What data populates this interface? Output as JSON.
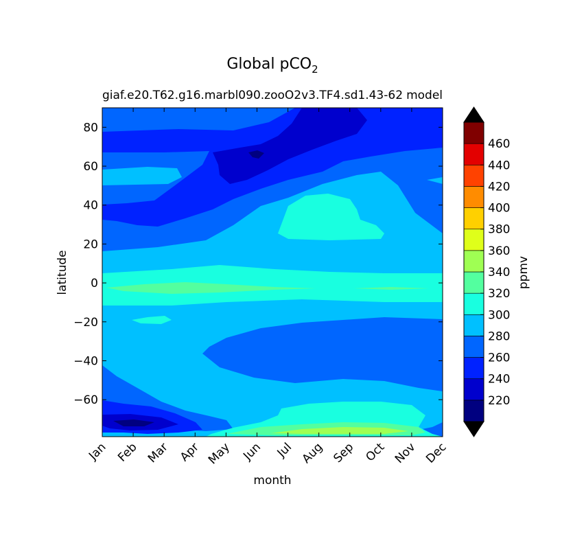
{
  "figure": {
    "title_main": "Global pCO",
    "title_sub": "2",
    "subtitle_left": "giaf.e20.T62.g16.marbl090.zooO2v3.TF4.sd1.43-62",
    "subtitle_right": "model"
  },
  "chart_data": {
    "type": "heatmap",
    "plot_style": "filled-contour",
    "xlabel": "month",
    "ylabel": "latitude",
    "x_categories": [
      "Jan",
      "Feb",
      "Mar",
      "Apr",
      "May",
      "Jun",
      "Jul",
      "Aug",
      "Sep",
      "Oct",
      "Nov",
      "Dec"
    ],
    "yticks": [
      -60,
      -40,
      -20,
      0,
      20,
      40,
      60,
      80
    ],
    "ylim": [
      -79,
      90
    ],
    "colorbar": {
      "label": "ppmv",
      "levels": [
        200,
        220,
        240,
        260,
        280,
        300,
        320,
        340,
        360,
        380,
        400,
        420,
        440,
        460,
        480
      ],
      "tick_labels": [
        220,
        240,
        260,
        280,
        300,
        320,
        340,
        360,
        380,
        400,
        420,
        440,
        460
      ],
      "colors": [
        "#000080",
        "#0000cd",
        "#0022ff",
        "#0066ff",
        "#00c0ff",
        "#19ffe0",
        "#53ff9f",
        "#9fff53",
        "#dfff1a",
        "#ffd000",
        "#ff8c00",
        "#ff4200",
        "#e30000",
        "#800000"
      ],
      "extend_low_color": "#000000",
      "extend_high_color": "#000000"
    },
    "approx_pco2_by_latitude_ppmv": {
      "month": [
        "Jan",
        "Feb",
        "Mar",
        "Apr",
        "May",
        "Jun",
        "Jul",
        "Aug",
        "Sep",
        "Oct",
        "Nov",
        "Dec"
      ],
      "lat_85": [
        265,
        265,
        265,
        265,
        255,
        245,
        245,
        245,
        255,
        255,
        255,
        255
      ],
      "lat_60": [
        265,
        265,
        275,
        265,
        255,
        245,
        245,
        255,
        255,
        265,
        265,
        265
      ],
      "lat_40": [
        255,
        255,
        255,
        255,
        265,
        265,
        285,
        305,
        305,
        285,
        285,
        265
      ],
      "lat_20": [
        275,
        275,
        275,
        275,
        275,
        285,
        285,
        285,
        285,
        285,
        285,
        285
      ],
      "lat_0": [
        305,
        315,
        315,
        315,
        305,
        305,
        305,
        305,
        305,
        305,
        305,
        305
      ],
      "lat_-20": [
        285,
        285,
        285,
        285,
        285,
        285,
        285,
        285,
        285,
        285,
        285,
        285
      ],
      "lat_-40": [
        285,
        285,
        285,
        285,
        285,
        285,
        265,
        265,
        265,
        265,
        265,
        265
      ],
      "lat_-60": [
        285,
        275,
        275,
        285,
        285,
        285,
        285,
        285,
        295,
        305,
        295,
        285
      ],
      "lat_-75": [
        245,
        245,
        255,
        265,
        285,
        305,
        315,
        325,
        325,
        325,
        305,
        285
      ]
    }
  }
}
